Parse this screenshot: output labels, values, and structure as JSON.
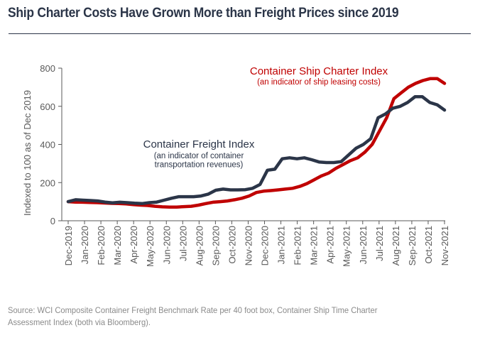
{
  "title": "Ship Charter Costs Have Grown More than Freight Prices since 2019",
  "source_note": "Source: WCI Composite Container Freight Benchmark Rate per 40 foot box, Container Ship Time Charter Assessment Index (both via Bloomberg).",
  "chart_data": {
    "type": "line",
    "title": "Ship Charter Costs Have Grown More than Freight Prices since 2019",
    "xlabel": "",
    "ylabel": "Indexed to 100 as of Dec 2019",
    "ylim": [
      0,
      800
    ],
    "yticks": [
      0,
      200,
      400,
      600,
      800
    ],
    "grid": false,
    "x_categories": [
      "Dec-2019",
      "Jan-2020",
      "Feb-2020",
      "Mar-2020",
      "Apr-2020",
      "May-2020",
      "Jun-2020",
      "Jul-2020",
      "Aug-2020",
      "Sep-2020",
      "Oct-2020",
      "Nov-2020",
      "Dec-2020",
      "Jan-2021",
      "Feb-2021",
      "Mar-2021",
      "Apr-2021",
      "May-2021",
      "Jun-2021",
      "Jul-2021",
      "Aug-2021",
      "Sep-2021",
      "Oct-2021",
      "Nov-2021"
    ],
    "x_step": "half-month (index 0 = Dec-2019, index 46 = Nov-2021)",
    "series": [
      {
        "name": "Container Freight Index",
        "annotation": "Container Freight Index",
        "annotation_sub": [
          "(an indicator of container",
          "transportation revenues)"
        ],
        "color": "#2b3548",
        "values": [
          100,
          110,
          108,
          106,
          104,
          98,
          94,
          97,
          95,
          92,
          90,
          95,
          98,
          108,
          118,
          126,
          126,
          126,
          130,
          140,
          160,
          166,
          162,
          162,
          163,
          170,
          190,
          265,
          270,
          325,
          330,
          325,
          330,
          320,
          308,
          305,
          305,
          310,
          345,
          380,
          400,
          430,
          540,
          560,
          590,
          600,
          620,
          650,
          650,
          620,
          608,
          580
        ]
      },
      {
        "name": "Container Ship Charter Index",
        "annotation": "Container Ship Charter Index",
        "annotation_sub": [
          "(an indicator of ship leasing costs)"
        ],
        "color": "#c00000",
        "values": [
          100,
          98,
          97,
          96,
          95,
          93,
          91,
          90,
          88,
          85,
          82,
          80,
          76,
          73,
          72,
          72,
          74,
          76,
          82,
          90,
          97,
          100,
          104,
          110,
          118,
          130,
          148,
          155,
          158,
          162,
          166,
          170,
          180,
          195,
          215,
          235,
          250,
          275,
          295,
          315,
          330,
          360,
          400,
          470,
          540,
          640,
          670,
          700,
          720,
          735,
          745,
          745,
          720
        ]
      }
    ]
  }
}
